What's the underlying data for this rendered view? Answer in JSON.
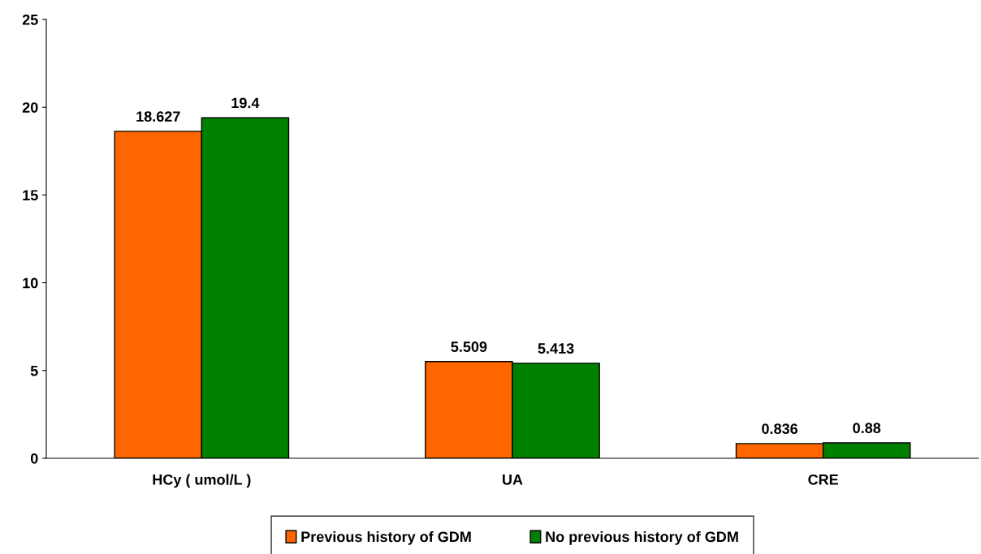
{
  "chart_data": {
    "type": "bar",
    "categories": [
      "HCy ( umol/L )",
      "UA",
      "CRE"
    ],
    "series": [
      {
        "name": "Previous history of GDM",
        "color": "#ff6600",
        "values": [
          18.627,
          5.509,
          0.836
        ]
      },
      {
        "name": "No previous history of GDM",
        "color": "#008000",
        "values": [
          19.4,
          5.413,
          0.88
        ]
      }
    ],
    "ylim": [
      0,
      25
    ],
    "yticks": [
      0,
      5,
      10,
      15,
      20,
      25
    ],
    "data_labels": true,
    "legend": "bottom",
    "grid": false
  }
}
